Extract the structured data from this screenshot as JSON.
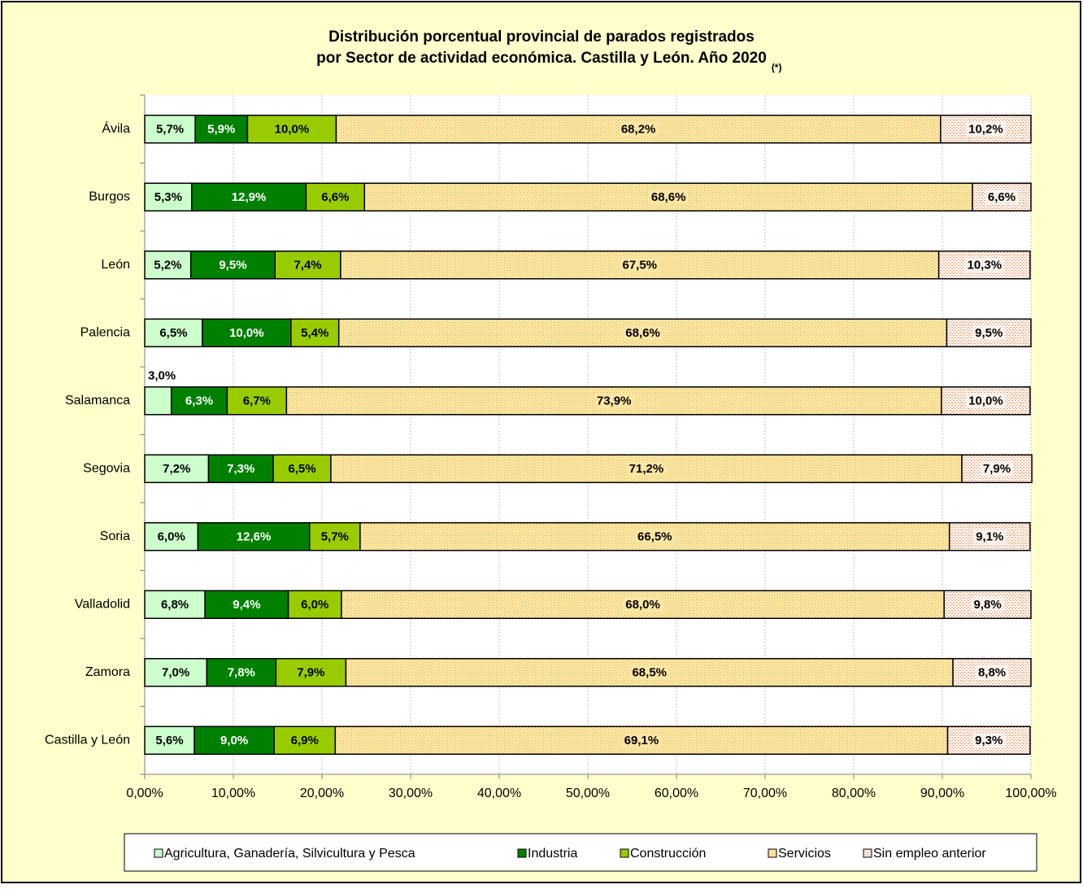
{
  "chart_data": {
    "type": "stacked-bar-horizontal",
    "title": [
      "Distribución porcentual provincial de parados registrados",
      "por Sector de actividad económica. Castilla y León. Año 2020"
    ],
    "title_note": "(*)",
    "categories": [
      "Ávila",
      "Burgos",
      "León",
      "Palencia",
      "Salamanca",
      "Segovia",
      "Soria",
      "Valladolid",
      "Zamora",
      "Castilla y León"
    ],
    "series": [
      {
        "name": "Agricultura, Ganadería, Silvicultura y Pesca",
        "color": "#ccffcc",
        "label_color": "#000000",
        "values": [
          5.7,
          5.3,
          5.2,
          6.5,
          3.0,
          7.2,
          6.0,
          6.8,
          7.0,
          5.6
        ],
        "value_labels": [
          "5,7%",
          "5,3%",
          "5,2%",
          "6,5%",
          "3,0%",
          "7,2%",
          "6,0%",
          "6,8%",
          "7,0%",
          "5,6%"
        ]
      },
      {
        "name": "Industria",
        "color": "#008000",
        "label_color": "#ffffff",
        "values": [
          5.9,
          12.9,
          9.5,
          10.0,
          6.3,
          7.3,
          12.6,
          9.4,
          7.8,
          9.0
        ],
        "value_labels": [
          "5,9%",
          "12,9%",
          "9,5%",
          "10,0%",
          "6,3%",
          "7,3%",
          "12,6%",
          "9,4%",
          "7,8%",
          "9,0%"
        ]
      },
      {
        "name": "Construcción",
        "color": "#99cc00",
        "label_color": "#000000",
        "values": [
          10.0,
          6.6,
          7.4,
          5.4,
          6.7,
          6.5,
          5.7,
          6.0,
          7.9,
          6.9
        ],
        "value_labels": [
          "10,0%",
          "6,6%",
          "7,4%",
          "5,4%",
          "6,7%",
          "6,5%",
          "5,7%",
          "6,0%",
          "7,9%",
          "6,9%"
        ]
      },
      {
        "name": "Servicios",
        "color": "#ffcc66",
        "label_color": "#000000",
        "values": [
          68.2,
          68.6,
          67.5,
          68.6,
          73.9,
          71.2,
          66.5,
          68.0,
          68.5,
          69.1
        ],
        "value_labels": [
          "68,2%",
          "68,6%",
          "67,5%",
          "68,6%",
          "73,9%",
          "71,2%",
          "66,5%",
          "68,0%",
          "68,5%",
          "69,1%"
        ]
      },
      {
        "name": "Sin empleo anterior",
        "color": "#ff9966",
        "label_color": "#000000",
        "values": [
          10.2,
          6.6,
          10.3,
          9.5,
          10.0,
          7.9,
          9.1,
          9.8,
          8.8,
          9.3
        ],
        "value_labels": [
          "10,2%",
          "6,6%",
          "10,3%",
          "9,5%",
          "10,0%",
          "7,9%",
          "9,1%",
          "9,8%",
          "8,8%",
          "9,3%"
        ]
      }
    ],
    "xlim": [
      0,
      100
    ],
    "xticks": [
      {
        "value": 0,
        "label": "0,00%"
      },
      {
        "value": 10,
        "label": "10,00%"
      },
      {
        "value": 20,
        "label": "20,00%"
      },
      {
        "value": 30,
        "label": "30,00%"
      },
      {
        "value": 40,
        "label": "40,00%"
      },
      {
        "value": 50,
        "label": "50,00%"
      },
      {
        "value": 60,
        "label": "60,00%"
      },
      {
        "value": 70,
        "label": "70,00%"
      },
      {
        "value": 80,
        "label": "80,00%"
      },
      {
        "value": 90,
        "label": "90,00%"
      },
      {
        "value": 100,
        "label": "100,00%"
      }
    ],
    "grid": true,
    "legend": "bottom"
  }
}
